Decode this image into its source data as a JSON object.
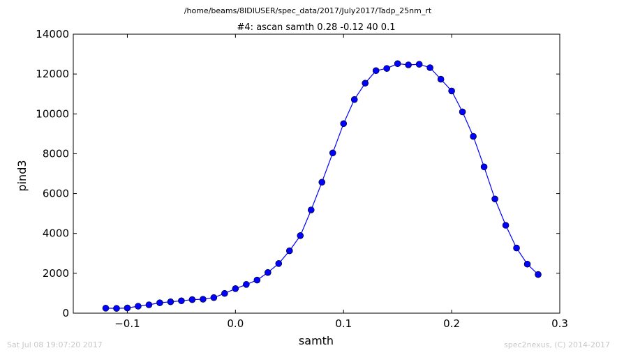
{
  "chart_data": {
    "type": "line",
    "suptitle": "/home/beams/8IDIUSER/spec_data/2017/July2017/Tadp_25nm_rt",
    "title": "#4: ascan  samth 0.28 -0.12  40 0.1",
    "xlabel": "samth",
    "ylabel": "pind3",
    "xlim": [
      -0.15,
      0.3
    ],
    "ylim": [
      0,
      14000
    ],
    "xticks": [
      -0.1,
      0.0,
      0.1,
      0.2,
      0.3
    ],
    "xtick_labels": [
      "−0.1",
      "0.0",
      "0.1",
      "0.2",
      "0.3"
    ],
    "yticks": [
      0,
      2000,
      4000,
      6000,
      8000,
      10000,
      12000,
      14000
    ],
    "ytick_labels": [
      "0",
      "2000",
      "4000",
      "6000",
      "8000",
      "10000",
      "12000",
      "14000"
    ],
    "grid": false,
    "color": "#0000ff",
    "series": [
      {
        "x": [
          -0.12,
          -0.11,
          -0.1,
          -0.09,
          -0.08,
          -0.07,
          -0.06,
          -0.05,
          -0.04,
          -0.03,
          -0.02,
          -0.01,
          0.0,
          0.01,
          0.02,
          0.03,
          0.04,
          0.05,
          0.06,
          0.07,
          0.08,
          0.09,
          0.1,
          0.11,
          0.12,
          0.13,
          0.14,
          0.15,
          0.16,
          0.17,
          0.18,
          0.19,
          0.2,
          0.21,
          0.22,
          0.23,
          0.24,
          0.25,
          0.26,
          0.27,
          0.28
        ],
        "y": [
          250,
          240,
          260,
          350,
          420,
          520,
          570,
          620,
          680,
          700,
          780,
          990,
          1230,
          1440,
          1660,
          2040,
          2490,
          3130,
          3890,
          5180,
          6570,
          8040,
          9510,
          10720,
          11540,
          12170,
          12280,
          12520,
          12460,
          12490,
          12320,
          11740,
          11150,
          10100,
          8870,
          7340,
          5730,
          4410,
          3270,
          2460,
          1940
        ]
      }
    ]
  },
  "footer": {
    "timestamp": "Sat Jul 08 19:07:20 2017",
    "credit": "spec2nexus, (C) 2014-2017"
  }
}
